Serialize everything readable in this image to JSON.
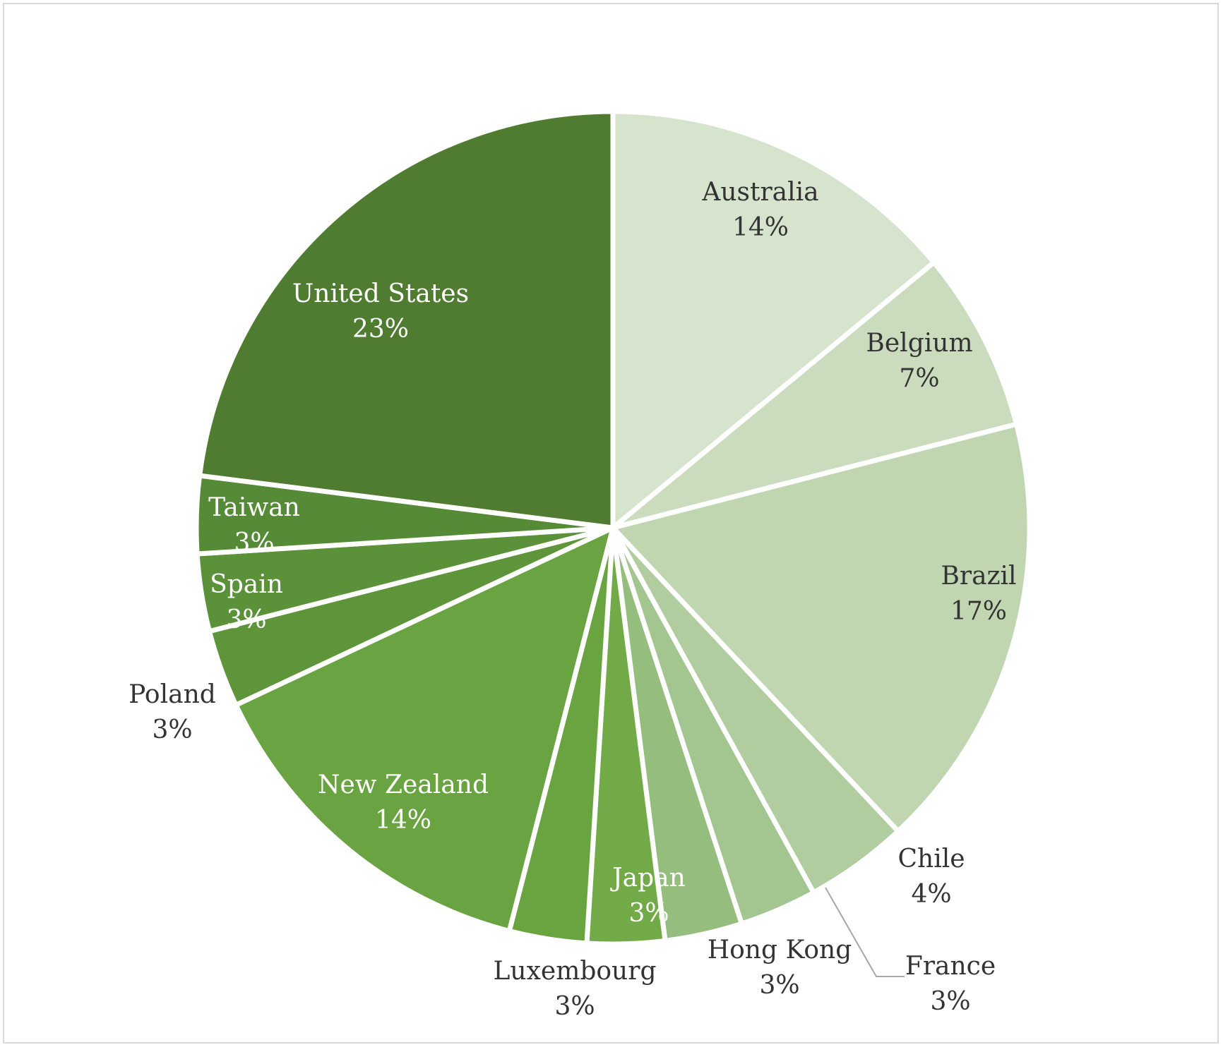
{
  "chart_data": {
    "type": "pie",
    "title": "",
    "slices": [
      {
        "label": "Australia",
        "value": 14,
        "pct_label": "14%",
        "color": "#d6e3cd",
        "text_color": "#333333"
      },
      {
        "label": "Belgium",
        "value": 7,
        "pct_label": "7%",
        "color": "#cbdcbe",
        "text_color": "#333333"
      },
      {
        "label": "Brazil",
        "value": 17,
        "pct_label": "17%",
        "color": "#bfd6b1",
        "text_color": "#333333"
      },
      {
        "label": "Chile",
        "value": 4,
        "pct_label": "4%",
        "color": "#b1cda0",
        "text_color": "#333333"
      },
      {
        "label": "France",
        "value": 3,
        "pct_label": "3%",
        "color": "#a3c690",
        "text_color": "#333333"
      },
      {
        "label": "Hong Kong",
        "value": 3,
        "pct_label": "3%",
        "color": "#94bd7e",
        "text_color": "#333333"
      },
      {
        "label": "Japan",
        "value": 3,
        "pct_label": "3%",
        "color": "#72aa48",
        "text_color": "#ffffff"
      },
      {
        "label": "Luxembourg",
        "value": 3,
        "pct_label": "3%",
        "color": "#6aa441",
        "text_color": "#333333"
      },
      {
        "label": "New Zealand",
        "value": 14,
        "pct_label": "14%",
        "color": "#6aa342",
        "text_color": "#ffffff"
      },
      {
        "label": "Poland",
        "value": 3,
        "pct_label": "3%",
        "color": "#5e953b",
        "text_color": "#333333"
      },
      {
        "label": "Spain",
        "value": 3,
        "pct_label": "3%",
        "color": "#5a9139",
        "text_color": "#ffffff"
      },
      {
        "label": "Taiwan",
        "value": 3,
        "pct_label": "3%",
        "color": "#558a36",
        "text_color": "#ffffff"
      },
      {
        "label": "United States",
        "value": 23,
        "pct_label": "23%",
        "color": "#507c32",
        "text_color": "#ffffff"
      }
    ],
    "start_angle": "12 o'clock",
    "direction": "clockwise",
    "slice_border_color": "#ffffff",
    "legend": "none"
  }
}
